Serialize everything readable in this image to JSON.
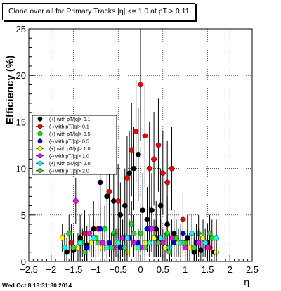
{
  "title": "Clone  over all for Primary Tracks |η| <= 1.0 at pT > 0.11",
  "timestamp": "Wed Oct  8 18:31:30 2014",
  "chart_data": {
    "type": "scatter",
    "title": "Clone  over all for Primary Tracks |η| <= 1.0 at pT > 0.11",
    "xlabel": "η",
    "ylabel": "Efficiency (%)",
    "xlim": [
      -2.5,
      2.5
    ],
    "ylim": [
      0,
      25
    ],
    "xticks": [
      -2.5,
      -2,
      -1.5,
      -1,
      -0.5,
      0,
      0.5,
      1,
      1.5,
      2,
      2.5
    ],
    "xtick_labels": [
      "−2.5",
      "−2",
      "−1.5",
      "−1",
      "−0.5",
      "0",
      "0.5",
      "1",
      "1.5",
      "2",
      "2.5"
    ],
    "yticks": [
      0,
      5,
      10,
      15,
      20,
      25
    ],
    "ytick_labels": [
      "0",
      "5",
      "10",
      "15",
      "20",
      "25"
    ],
    "grid": true,
    "legend_position": "center-left",
    "series": [
      {
        "name": "(+) with pT/|q|> 0.1",
        "color": "#000000",
        "x": [
          -1.65,
          -1.5,
          -1.35,
          -1.2,
          -1.05,
          -0.9,
          -0.75,
          -0.6,
          -0.45,
          -0.35,
          -0.25,
          -0.15,
          -0.05,
          0.05,
          0.15,
          0.25,
          0.35,
          0.45,
          0.6,
          0.75,
          0.9,
          1.05,
          1.2,
          1.35,
          1.5,
          1.65
        ],
        "y": [
          1.0,
          1.2,
          2.5,
          1.8,
          3.5,
          8.5,
          7.0,
          6.5,
          5.0,
          6.0,
          9.5,
          10.0,
          11.5,
          5.5,
          4.5,
          5.5,
          3.5,
          6.0,
          4.0,
          3.0,
          2.0,
          2.5,
          1.0,
          1.2,
          2.0,
          1.0
        ],
        "err": [
          1.5,
          1.5,
          2.5,
          2.0,
          3.0,
          4.5,
          4.0,
          4.0,
          3.5,
          4.0,
          4.5,
          4.5,
          5.0,
          4.0,
          3.5,
          4.0,
          3.0,
          4.0,
          3.0,
          2.5,
          2.0,
          2.5,
          1.5,
          1.5,
          2.0,
          1.5
        ]
      },
      {
        "name": "(-) with pT/|q|> 0.1",
        "color": "#ff0000",
        "x": [
          -1.55,
          -1.25,
          -0.95,
          -0.7,
          -0.5,
          -0.3,
          -0.2,
          -0.1,
          0.0,
          0.1,
          0.2,
          0.3,
          0.4,
          0.5,
          0.6,
          0.7,
          0.95,
          1.25,
          1.55
        ],
        "y": [
          2.0,
          3.0,
          3.5,
          7.5,
          6.5,
          9.0,
          12.0,
          14.0,
          19.0,
          13.5,
          10.0,
          11.0,
          12.5,
          9.5,
          8.5,
          10.0,
          4.5,
          2.0,
          1.5
        ],
        "err": [
          2.0,
          2.5,
          3.0,
          4.0,
          4.0,
          4.5,
          5.0,
          5.5,
          6.0,
          5.5,
          5.0,
          5.0,
          5.0,
          4.5,
          4.5,
          4.5,
          3.0,
          2.0,
          2.0
        ]
      },
      {
        "name": "(+) with pT/|q|> 0.5",
        "color": "#00ee00",
        "x": [
          -1.6,
          -1.3,
          -1.0,
          -0.8,
          -0.6,
          -0.4,
          -0.2,
          0.0,
          0.2,
          0.4,
          0.6,
          0.8,
          1.0,
          1.3,
          1.6
        ],
        "y": [
          3.0,
          2.0,
          2.5,
          3.5,
          3.0,
          2.5,
          4.0,
          3.0,
          3.5,
          2.0,
          3.0,
          2.5,
          2.0,
          3.0,
          2.5
        ],
        "err": [
          2.0,
          1.5,
          2.0,
          2.5,
          2.0,
          2.0,
          2.5,
          2.0,
          2.5,
          1.5,
          2.0,
          2.0,
          1.5,
          2.0,
          2.0
        ]
      },
      {
        "name": "(-) with pT/|q|> 0.5",
        "color": "#0000ff",
        "x": [
          -1.5,
          -1.2,
          -0.9,
          -0.7,
          -0.45,
          -0.25,
          -0.05,
          0.15,
          0.35,
          0.55,
          0.75,
          0.95,
          1.25,
          1.5
        ],
        "y": [
          1.5,
          1.5,
          3.5,
          2.0,
          1.5,
          2.5,
          2.0,
          3.5,
          2.5,
          1.5,
          2.0,
          3.0,
          2.0,
          1.5
        ],
        "err": [
          1.5,
          1.5,
          2.5,
          1.5,
          1.5,
          2.0,
          1.5,
          2.5,
          2.0,
          1.5,
          1.5,
          2.0,
          1.5,
          1.5
        ]
      },
      {
        "name": "(+) with pT/|q|> 1.0",
        "color": "#ffff00",
        "x": [
          -1.75,
          -1.4,
          -1.1,
          -0.85,
          -0.55,
          -0.3,
          -0.1,
          0.1,
          0.3,
          0.55,
          0.85,
          1.1,
          1.4,
          1.7
        ],
        "y": [
          2.5,
          1.5,
          2.0,
          1.5,
          2.0,
          1.0,
          1.5,
          2.0,
          2.5,
          1.5,
          2.0,
          1.5,
          2.5,
          1.0
        ],
        "err": [
          1.5,
          1.5,
          1.5,
          1.5,
          1.5,
          1.0,
          1.5,
          1.5,
          2.0,
          1.5,
          1.5,
          1.5,
          2.0,
          1.0
        ]
      },
      {
        "name": "(-) with pT/|q|> 1.0",
        "color": "#ff00ff",
        "x": [
          -1.45,
          -1.15,
          -0.85,
          -0.6,
          -0.4,
          -0.15,
          0.05,
          0.25,
          0.5,
          0.7,
          1.0,
          1.3,
          1.5
        ],
        "y": [
          6.5,
          3.0,
          2.0,
          1.5,
          2.5,
          2.0,
          1.5,
          3.5,
          2.0,
          2.5,
          1.5,
          2.0,
          1.5
        ],
        "err": [
          2.5,
          2.0,
          1.5,
          1.5,
          2.0,
          1.5,
          1.5,
          2.5,
          1.5,
          2.0,
          1.5,
          1.5,
          1.5
        ]
      },
      {
        "name": "(+) with pT/|q|> 2.0",
        "color": "#00ffff",
        "x": [
          -1.7,
          -1.35,
          -1.05,
          -0.75,
          -0.5,
          -0.3,
          -0.05,
          0.2,
          0.45,
          0.65,
          0.9,
          1.15,
          1.45,
          1.7
        ],
        "y": [
          1.5,
          2.0,
          2.5,
          1.5,
          2.0,
          2.5,
          1.5,
          2.0,
          2.5,
          1.5,
          2.0,
          3.0,
          2.0,
          2.5
        ],
        "err": [
          1.5,
          1.5,
          2.0,
          1.5,
          1.5,
          2.0,
          1.5,
          1.5,
          2.0,
          1.5,
          1.5,
          2.0,
          1.5,
          2.0
        ]
      },
      {
        "name": "(-) with pT/|q|> 2.0",
        "color": "#44cc44",
        "x": [
          -1.5,
          -1.25,
          -0.95,
          -0.65,
          -0.35,
          -0.15,
          0.1,
          0.4,
          0.65,
          0.95,
          1.2,
          1.55
        ],
        "y": [
          1.5,
          1.0,
          2.0,
          1.5,
          1.5,
          3.0,
          1.5,
          2.0,
          1.0,
          2.0,
          1.5,
          3.0
        ],
        "err": [
          1.5,
          1.0,
          1.5,
          1.5,
          1.5,
          2.0,
          1.5,
          1.5,
          1.0,
          1.5,
          1.5,
          2.0
        ]
      }
    ]
  }
}
